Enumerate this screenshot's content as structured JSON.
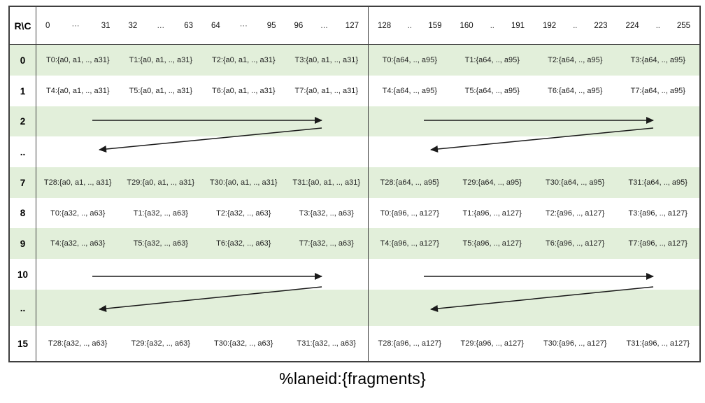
{
  "table": {
    "corner_label": "R\\C",
    "header_cols": [
      {
        "start": "0",
        "dots": "···",
        "end": "31"
      },
      {
        "start": "32",
        "dots": "…",
        "end": "63"
      },
      {
        "start": "64",
        "dots": "···",
        "end": "95"
      },
      {
        "start": "96",
        "dots": "…",
        "end": "127"
      },
      {
        "start": "128",
        "dots": "..",
        "end": "159"
      },
      {
        "start": "160",
        "dots": "..",
        "end": "191"
      },
      {
        "start": "192",
        "dots": "..",
        "end": "223"
      },
      {
        "start": "224",
        "dots": "..",
        "end": "255"
      }
    ],
    "rows": [
      {
        "label": "0",
        "shaded": true,
        "type": "data",
        "cells": [
          "T0:{a0, a1, .., a31}",
          "T1:{a0, a1, .., a31}",
          "T2:{a0, a1, .., a31}",
          "T3:{a0, a1, .., a31}",
          "T0:{a64, .., a95}",
          "T1:{a64, .., a95}",
          "T2:{a64, .., a95}",
          "T3:{a64, .., a95}"
        ]
      },
      {
        "label": "1",
        "shaded": false,
        "type": "data",
        "cells": [
          "T4:{a0, a1, .., a31}",
          "T5:{a0, a1, .., a31}",
          "T6:{a0, a1, .., a31}",
          "T7:{a0, a1, .., a31}",
          "T4:{a64, .., a95}",
          "T5:{a64, .., a95}",
          "T6:{a64, .., a95}",
          "T7:{a64, .., a95}"
        ]
      },
      {
        "label": "2",
        "shaded": true,
        "type": "arrow-right"
      },
      {
        "label": "..",
        "shaded": false,
        "type": "arrow-left"
      },
      {
        "label": "7",
        "shaded": true,
        "type": "data",
        "cells": [
          "T28:{a0, a1, .., a31}",
          "T29:{a0, a1, .., a31}",
          "T30:{a0, a1, .., a31}",
          "T31:{a0, a1, .., a31}",
          "T28:{a64, .., a95}",
          "T29:{a64, .., a95}",
          "T30:{a64, .., a95}",
          "T31:{a64, .., a95}"
        ]
      },
      {
        "label": "8",
        "shaded": false,
        "type": "data",
        "cells": [
          "T0:{a32, .., a63}",
          "T1:{a32, .., a63}",
          "T2:{a32, .., a63}",
          "T3:{a32, .., a63}",
          "T0:{a96, .., a127}",
          "T1:{a96, .., a127}",
          "T2:{a96, .., a127}",
          "T3:{a96, .., a127}"
        ]
      },
      {
        "label": "9",
        "shaded": true,
        "type": "data",
        "cells": [
          "T4:{a32, .., a63}",
          "T5:{a32, .., a63}",
          "T6:{a32, .., a63}",
          "T7:{a32, .., a63}",
          "T4:{a96, .., a127}",
          "T5:{a96, .., a127}",
          "T6:{a96, .., a127}",
          "T7:{a96, .., a127}"
        ]
      },
      {
        "label": "10",
        "shaded": false,
        "type": "arrow-right"
      },
      {
        "label": "..",
        "shaded": true,
        "type": "arrow-left"
      },
      {
        "label": "15",
        "shaded": false,
        "type": "data",
        "cells": [
          "T28:{a32, .., a63}",
          "T29:{a32, .., a63}",
          "T30:{a32, .., a63}",
          "T31:{a32, .., a63}",
          "T28:{a96, .., a127}",
          "T29:{a96, .., a127}",
          "T30:{a96, .., a127}",
          "T31:{a96, .., a127}"
        ]
      }
    ]
  },
  "caption": "%laneid:{fragments}",
  "colors": {
    "row_shade": "#e2efda",
    "border": "#3f3f3f",
    "text": "#1f1f1f",
    "arrow": "#1a1a1a"
  }
}
